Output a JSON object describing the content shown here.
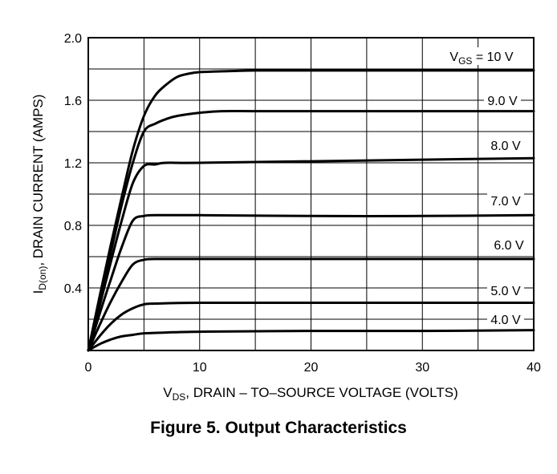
{
  "chart_data": {
    "type": "line",
    "title": "Figure 5. Output Characteristics",
    "xlabel": {
      "main": "V",
      "sub": "DS",
      "rest": ", DRAIN – TO–SOURCE VOLTAGE (VOLTS)"
    },
    "ylabel": {
      "main": "I",
      "sub": "D(on)",
      "rest": ", DRAIN CURRENT (AMPS)"
    },
    "xlim": [
      0,
      40
    ],
    "ylim": [
      0,
      2.0
    ],
    "x_ticks": [
      "0",
      "10",
      "20",
      "30",
      "40"
    ],
    "y_ticks": [
      "0.4",
      "0.8",
      "1.2",
      "1.6",
      "2.0"
    ],
    "grid": true,
    "series": [
      {
        "name": "V_GS = 10 V",
        "label_main": "V",
        "label_sub": "GS",
        "label_rest": " = 10 V",
        "points": [
          [
            0,
            0
          ],
          [
            1,
            0.34
          ],
          [
            2,
            0.67
          ],
          [
            3,
            0.98
          ],
          [
            4,
            1.28
          ],
          [
            5,
            1.5
          ],
          [
            6,
            1.63
          ],
          [
            7,
            1.7
          ],
          [
            8,
            1.75
          ],
          [
            9,
            1.77
          ],
          [
            10,
            1.78
          ],
          [
            12,
            1.785
          ],
          [
            15,
            1.79
          ],
          [
            20,
            1.79
          ],
          [
            30,
            1.79
          ],
          [
            40,
            1.79
          ]
        ]
      },
      {
        "name": "9.0 V",
        "label_main": "9.0 V",
        "label_sub": "",
        "label_rest": "",
        "points": [
          [
            0,
            0
          ],
          [
            1,
            0.31
          ],
          [
            2,
            0.62
          ],
          [
            3,
            0.93
          ],
          [
            4,
            1.2
          ],
          [
            5,
            1.4
          ],
          [
            6,
            1.45
          ],
          [
            7,
            1.48
          ],
          [
            8,
            1.5
          ],
          [
            10,
            1.52
          ],
          [
            12,
            1.53
          ],
          [
            15,
            1.53
          ],
          [
            20,
            1.53
          ],
          [
            30,
            1.53
          ],
          [
            40,
            1.53
          ]
        ]
      },
      {
        "name": "8.0 V",
        "label_main": "8.0 V",
        "label_sub": "",
        "label_rest": "",
        "points": [
          [
            0,
            0
          ],
          [
            1,
            0.28
          ],
          [
            2,
            0.56
          ],
          [
            3,
            0.83
          ],
          [
            4,
            1.07
          ],
          [
            5,
            1.18
          ],
          [
            6,
            1.19
          ],
          [
            7,
            1.2
          ],
          [
            10,
            1.2
          ],
          [
            20,
            1.21
          ],
          [
            30,
            1.22
          ],
          [
            40,
            1.23
          ]
        ]
      },
      {
        "name": "7.0 V",
        "label_main": "7.0 V",
        "label_sub": "",
        "label_rest": "",
        "points": [
          [
            0,
            0
          ],
          [
            1,
            0.23
          ],
          [
            2,
            0.45
          ],
          [
            3,
            0.66
          ],
          [
            4,
            0.83
          ],
          [
            5,
            0.86
          ],
          [
            6,
            0.865
          ],
          [
            10,
            0.865
          ],
          [
            20,
            0.86
          ],
          [
            30,
            0.86
          ],
          [
            40,
            0.865
          ]
        ]
      },
      {
        "name": "6.0 V",
        "label_main": "6.0 V",
        "label_sub": "",
        "label_rest": "",
        "points": [
          [
            0,
            0
          ],
          [
            1,
            0.16
          ],
          [
            2,
            0.31
          ],
          [
            3,
            0.44
          ],
          [
            4,
            0.55
          ],
          [
            5,
            0.58
          ],
          [
            6,
            0.585
          ],
          [
            10,
            0.585
          ],
          [
            20,
            0.585
          ],
          [
            30,
            0.585
          ],
          [
            40,
            0.585
          ]
        ]
      },
      {
        "name": "5.0 V",
        "label_main": "5.0 V",
        "label_sub": "",
        "label_rest": "",
        "points": [
          [
            0,
            0
          ],
          [
            1,
            0.09
          ],
          [
            2,
            0.17
          ],
          [
            3,
            0.23
          ],
          [
            4,
            0.27
          ],
          [
            5,
            0.295
          ],
          [
            6,
            0.3
          ],
          [
            10,
            0.305
          ],
          [
            20,
            0.305
          ],
          [
            30,
            0.305
          ],
          [
            40,
            0.305
          ]
        ]
      },
      {
        "name": "4.0 V",
        "label_main": "4.0 V",
        "label_sub": "",
        "label_rest": "",
        "points": [
          [
            0,
            0
          ],
          [
            1,
            0.04
          ],
          [
            2,
            0.07
          ],
          [
            3,
            0.09
          ],
          [
            4,
            0.1
          ],
          [
            5,
            0.11
          ],
          [
            7,
            0.115
          ],
          [
            10,
            0.12
          ],
          [
            20,
            0.125
          ],
          [
            30,
            0.125
          ],
          [
            40,
            0.13
          ]
        ]
      }
    ]
  }
}
